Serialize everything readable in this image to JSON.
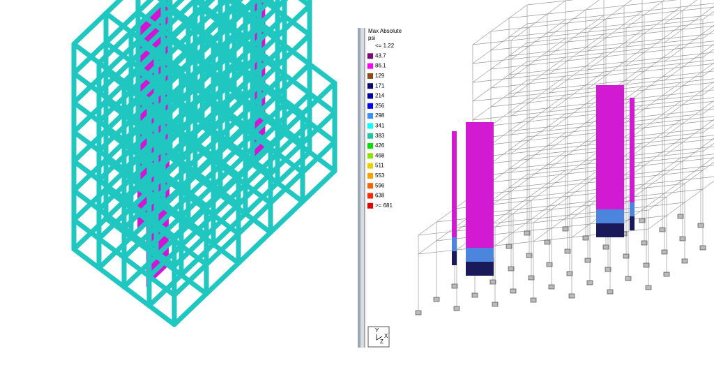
{
  "legend": {
    "title": "Max Absolute",
    "unit": "psi",
    "entries": [
      {
        "label": "<= 1.22",
        "color": "#ffffff"
      },
      {
        "label": "43.7",
        "color": "#7a0a7a"
      },
      {
        "label": "86.1",
        "color": "#ff00ff"
      },
      {
        "label": "129",
        "color": "#8b4a1a"
      },
      {
        "label": "171",
        "color": "#0a0a6e"
      },
      {
        "label": "214",
        "color": "#0000a8"
      },
      {
        "label": "256",
        "color": "#0000ff"
      },
      {
        "label": "298",
        "color": "#3a8cff"
      },
      {
        "label": "341",
        "color": "#00ffff"
      },
      {
        "label": "383",
        "color": "#18c8a0"
      },
      {
        "label": "426",
        "color": "#00e000"
      },
      {
        "label": "468",
        "color": "#90e000"
      },
      {
        "label": "511",
        "color": "#e8d000"
      },
      {
        "label": "553",
        "color": "#ffa000"
      },
      {
        "label": "596",
        "color": "#ff6000"
      },
      {
        "label": "638",
        "color": "#ff2a00"
      },
      {
        "label": ">= 681",
        "color": "#e00000"
      }
    ]
  },
  "axes_icon": {
    "labels": [
      "Y",
      "Z",
      "X"
    ]
  }
}
